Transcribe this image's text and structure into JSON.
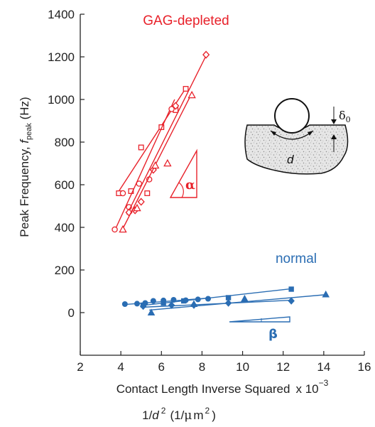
{
  "chart_data": {
    "type": "scatter",
    "xlim": [
      2,
      16
    ],
    "ylim": [
      -200,
      1400
    ],
    "x_ticks": [
      "2",
      "4",
      "6",
      "8",
      "10",
      "12",
      "14",
      "16"
    ],
    "y_ticks": [
      "0",
      "200",
      "400",
      "600",
      "800",
      "1000",
      "1200",
      "1400"
    ],
    "x_label_main": "Contact Length Inverse Squared",
    "x_label_scale": "x 10",
    "x_label_exp": "−3",
    "x_label_second_a": "1/",
    "x_label_second_d": "d",
    "x_label_second_exp": "2",
    "x_label_second_unit_open": "(1/",
    "x_label_second_mu": "μ",
    "x_label_second_m": "m",
    "x_label_second_unit_exp": "2",
    "x_label_second_close": ")",
    "y_label_main": "Peak Frequency, ",
    "y_label_f": "f",
    "y_label_sub": "peak",
    "y_label_unit": " (Hz)",
    "grid": false,
    "colors": {
      "gag": "#e8212a",
      "normal": "#2a6db3",
      "axis": "#222222"
    },
    "series": [
      {
        "name": "GAG-depleted",
        "group": "gag",
        "marker": "square",
        "x": [
          3.9,
          4.5,
          5.0,
          5.3,
          6.0,
          6.7,
          7.2
        ],
        "y": [
          560,
          570,
          775,
          560,
          870,
          950,
          1050
        ],
        "fit": [
          [
            3.8,
            555
          ],
          [
            7.25,
            1060
          ]
        ]
      },
      {
        "name": "",
        "group": "gag",
        "marker": "circle",
        "x": [
          3.7,
          4.1,
          4.4,
          4.9,
          5.4,
          6.5
        ],
        "y": [
          390,
          560,
          495,
          605,
          625,
          955
        ],
        "fit": [
          [
            3.7,
            385
          ],
          [
            6.65,
            1000
          ]
        ]
      },
      {
        "name": "",
        "group": "gag",
        "marker": "diamond",
        "x": [
          4.4,
          4.7,
          5.0,
          5.6,
          6.7,
          8.2
        ],
        "y": [
          470,
          480,
          520,
          670,
          970,
          1210
        ],
        "fit": [
          [
            4.3,
            460
          ],
          [
            8.25,
            1215
          ]
        ]
      },
      {
        "name": "",
        "group": "gag",
        "marker": "triangle",
        "x": [
          4.1,
          4.8,
          5.7,
          6.3,
          7.5
        ],
        "y": [
          390,
          490,
          690,
          700,
          1020
        ],
        "fit": [
          [
            4.05,
            385
          ],
          [
            7.45,
            1020
          ]
        ]
      },
      {
        "name": "normal",
        "group": "normal",
        "marker": "circle",
        "x": [
          4.2,
          4.8,
          5.2,
          5.6,
          6.1,
          6.6,
          7.2,
          7.8,
          8.3
        ],
        "y": [
          40,
          42,
          45,
          55,
          57,
          60,
          58,
          62,
          65
        ],
        "fit": [
          [
            4.2,
            38
          ],
          [
            8.3,
            68
          ]
        ]
      },
      {
        "name": "",
        "group": "normal",
        "marker": "square",
        "x": [
          5.1,
          6.1,
          7.1,
          9.3,
          12.4
        ],
        "y": [
          35,
          45,
          55,
          70,
          110
        ],
        "fit": [
          [
            5.0,
            33
          ],
          [
            12.4,
            112
          ]
        ]
      },
      {
        "name": "",
        "group": "normal",
        "marker": "diamond",
        "x": [
          5.1,
          6.5,
          7.6,
          9.3,
          12.4
        ],
        "y": [
          30,
          35,
          35,
          45,
          55
        ],
        "fit": [
          [
            5.0,
            25
          ],
          [
            12.4,
            58
          ]
        ]
      },
      {
        "name": "",
        "group": "normal",
        "marker": "triangle",
        "x": [
          5.5,
          7.6,
          10.1,
          14.1
        ],
        "y": [
          0,
          40,
          65,
          85
        ],
        "fit": [
          [
            5.4,
            12
          ],
          [
            14.2,
            85
          ]
        ]
      }
    ],
    "annotations": {
      "gag_label": "GAG-depleted",
      "normal_label": "normal",
      "alpha_symbol": "α",
      "beta_symbol": "β",
      "inset_d": "d",
      "inset_delta": "δ",
      "inset_delta_sub": "0"
    }
  }
}
